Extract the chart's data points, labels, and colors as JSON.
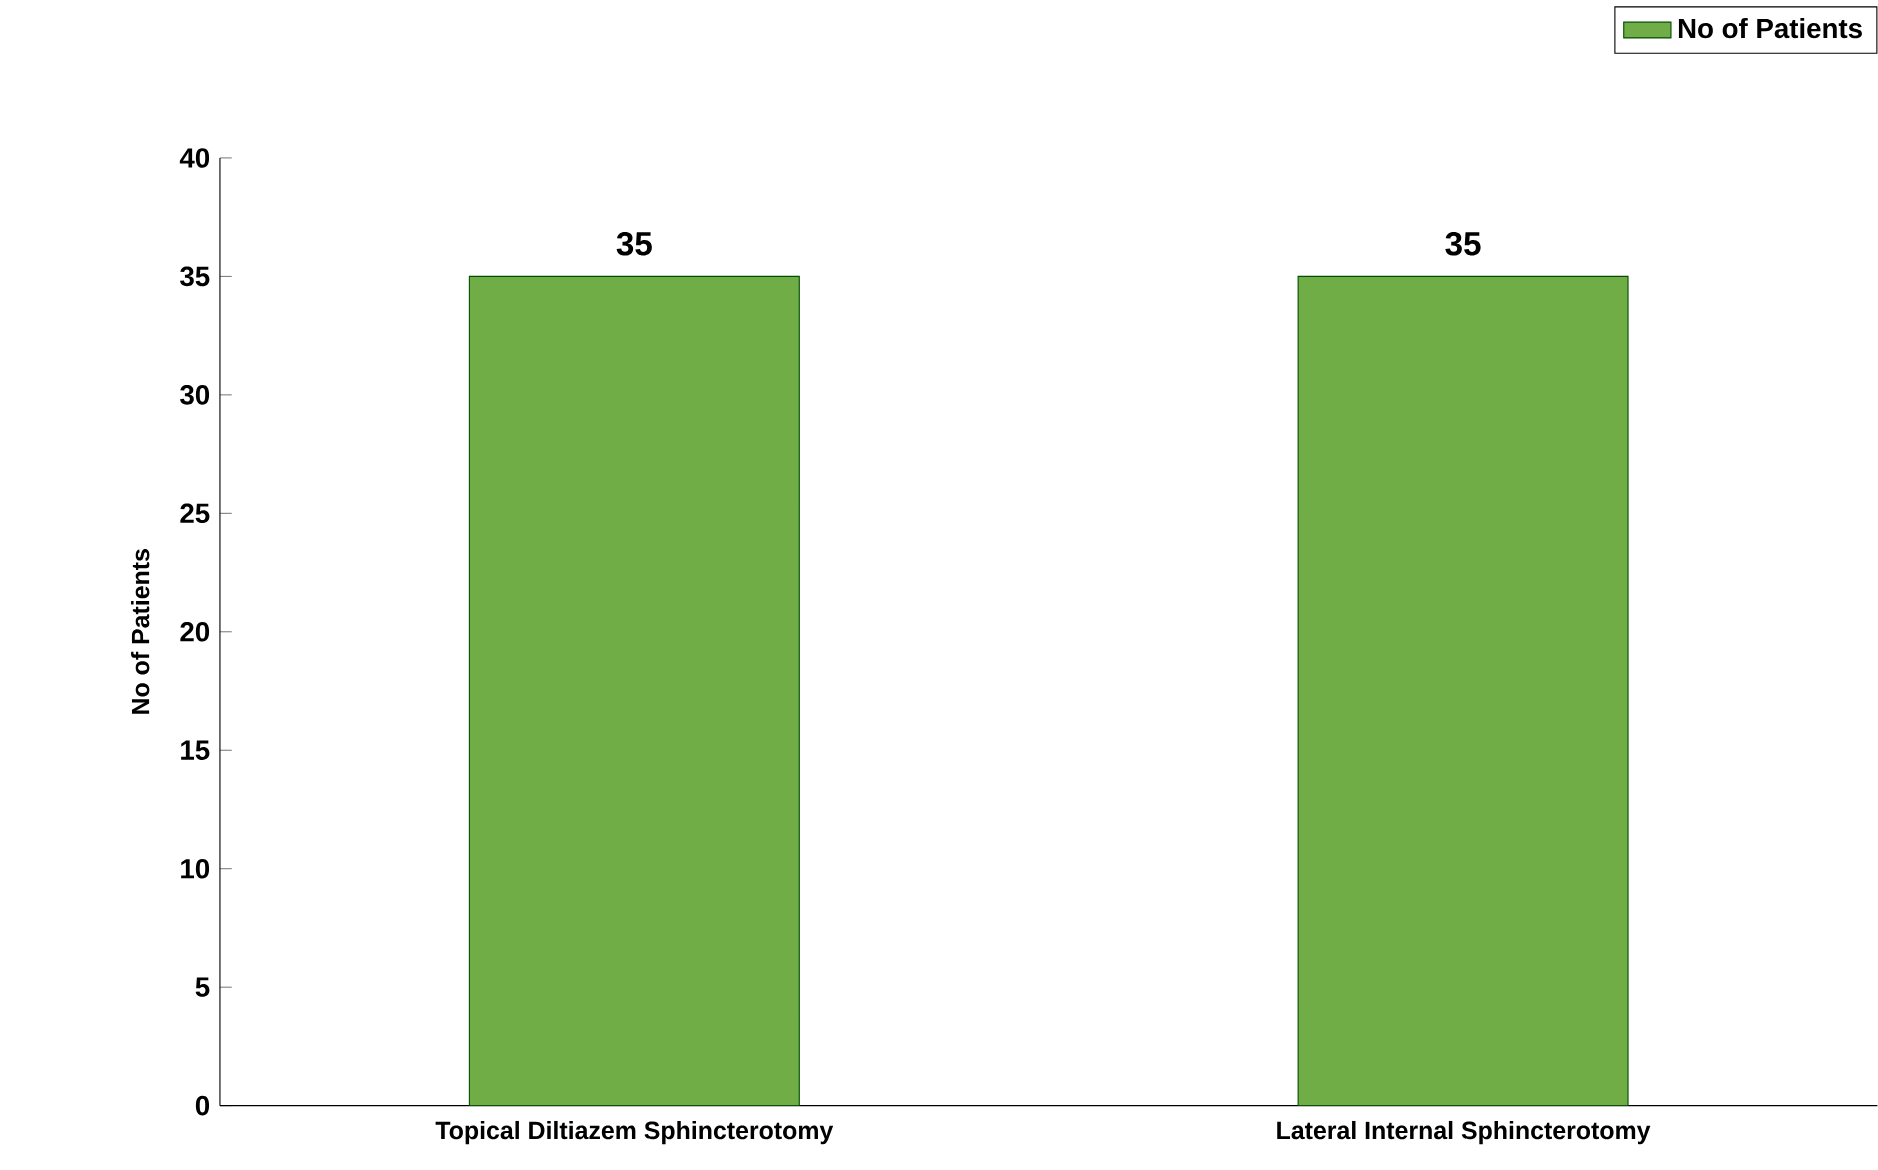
{
  "chart_data": {
    "type": "bar",
    "ylabel": "No of Patients",
    "categories": [
      "Topical Diltiazem Sphincterotomy",
      "Lateral Internal Sphincterotomy"
    ],
    "series": [
      {
        "name": "No of Patients",
        "color": "#70ad47",
        "values": [
          35,
          35
        ]
      }
    ],
    "ylim": [
      0,
      40
    ],
    "yticks": [
      0,
      5,
      10,
      15,
      20,
      25,
      30,
      35,
      40
    ],
    "data_labels": true,
    "legend": "top right",
    "grid": false
  }
}
